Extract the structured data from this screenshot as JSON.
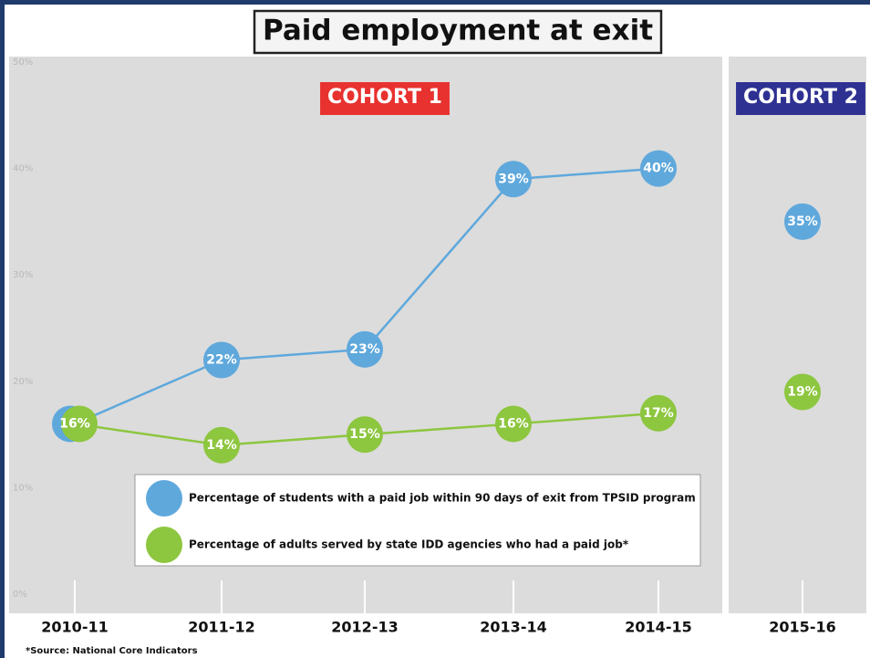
{
  "chart_data": {
    "type": "line",
    "title": "Paid employment at exit",
    "cohorts": [
      {
        "label": "COHORT 1",
        "color": "#e8322f",
        "categories": [
          "2010-11",
          "2011-12",
          "2012-13",
          "2013-14",
          "2014-15"
        ]
      },
      {
        "label": "COHORT 2",
        "color": "#2e3192",
        "categories": [
          "2015-16"
        ]
      }
    ],
    "series": [
      {
        "name": "Percentage of students with a paid job within 90 days of exit from TPSID program",
        "color": "#5fa8dc",
        "values": [
          16,
          22,
          23,
          39,
          40,
          35
        ],
        "value_labels": [
          "16%",
          "22%",
          "23%",
          "39%",
          "40%",
          "35%"
        ]
      },
      {
        "name": "Percentage of adults served by state IDD agencies who had a paid job*",
        "color": "#8dc63f",
        "values": [
          16,
          14,
          15,
          16,
          17,
          19
        ],
        "value_labels": [
          "16%",
          "14%",
          "15%",
          "16%",
          "17%",
          "19%"
        ]
      }
    ],
    "ylim": [
      0,
      50
    ],
    "yticks": [
      {
        "value": 0,
        "label": "0%"
      },
      {
        "value": 10,
        "label": "10%"
      },
      {
        "value": 20,
        "label": "20%"
      },
      {
        "value": 30,
        "label": "30%"
      },
      {
        "value": 40,
        "label": "40%"
      },
      {
        "value": 50,
        "label": "50%"
      }
    ],
    "source": "*Source: National Core Indicators"
  }
}
